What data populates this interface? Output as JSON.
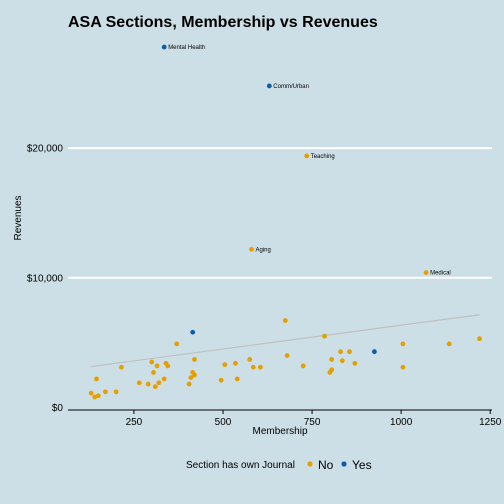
{
  "chart_data": {
    "type": "scatter",
    "title": "ASA Sections, Membership vs Revenues",
    "xlabel": "Membership",
    "ylabel": "Revenues",
    "xlim": [
      65,
      1255
    ],
    "ylim": [
      -200,
      28500
    ],
    "x_ticks": [
      250,
      500,
      750,
      1000,
      1250
    ],
    "x_tick_labels": [
      "250",
      "500",
      "750",
      "1000",
      "1250"
    ],
    "y_ticks": [
      0,
      10000,
      20000
    ],
    "y_tick_labels": [
      "$0",
      "$10,000",
      "$20,000"
    ],
    "grid": "horizontal",
    "legend_position": "bottom",
    "legend": {
      "title": "Section has own Journal",
      "entries": [
        {
          "label": "No",
          "color": "#e69f00"
        },
        {
          "label": "Yes",
          "color": "#0b5ea8"
        }
      ]
    },
    "trend_line": {
      "x": [
        130,
        1220
      ],
      "y": [
        3150,
        7150
      ],
      "color": "#c0c0c0"
    },
    "series": [
      {
        "name": "No",
        "color": "#e69f00",
        "points": [
          {
            "x": 130,
            "y": 1100
          },
          {
            "x": 140,
            "y": 800
          },
          {
            "x": 145,
            "y": 2200
          },
          {
            "x": 150,
            "y": 900
          },
          {
            "x": 170,
            "y": 1200
          },
          {
            "x": 200,
            "y": 1200
          },
          {
            "x": 215,
            "y": 3100
          },
          {
            "x": 265,
            "y": 1900
          },
          {
            "x": 290,
            "y": 1800
          },
          {
            "x": 300,
            "y": 3500
          },
          {
            "x": 305,
            "y": 2700
          },
          {
            "x": 310,
            "y": 1600
          },
          {
            "x": 315,
            "y": 3200
          },
          {
            "x": 320,
            "y": 1900
          },
          {
            "x": 335,
            "y": 2200
          },
          {
            "x": 340,
            "y": 3400
          },
          {
            "x": 345,
            "y": 3200
          },
          {
            "x": 370,
            "y": 4900
          },
          {
            "x": 405,
            "y": 1800
          },
          {
            "x": 410,
            "y": 2300
          },
          {
            "x": 415,
            "y": 2700
          },
          {
            "x": 420,
            "y": 2500
          },
          {
            "x": 420,
            "y": 3700
          },
          {
            "x": 495,
            "y": 2100
          },
          {
            "x": 505,
            "y": 3300
          },
          {
            "x": 535,
            "y": 3400
          },
          {
            "x": 540,
            "y": 2200
          },
          {
            "x": 575,
            "y": 3700
          },
          {
            "x": 585,
            "y": 3100
          },
          {
            "x": 605,
            "y": 3100
          },
          {
            "x": 675,
            "y": 6700
          },
          {
            "x": 680,
            "y": 4000
          },
          {
            "x": 725,
            "y": 3200
          },
          {
            "x": 785,
            "y": 5500
          },
          {
            "x": 800,
            "y": 2700
          },
          {
            "x": 805,
            "y": 2900
          },
          {
            "x": 805,
            "y": 3700
          },
          {
            "x": 830,
            "y": 4300
          },
          {
            "x": 835,
            "y": 3600
          },
          {
            "x": 855,
            "y": 4300
          },
          {
            "x": 870,
            "y": 3400
          },
          {
            "x": 1005,
            "y": 4900
          },
          {
            "x": 1005,
            "y": 3100
          },
          {
            "x": 1135,
            "y": 4900
          },
          {
            "x": 1220,
            "y": 5300
          }
        ]
      },
      {
        "name": "Yes",
        "color": "#0b5ea8",
        "points": [
          {
            "x": 415,
            "y": 5800
          },
          {
            "x": 925,
            "y": 4300
          }
        ]
      }
    ],
    "labeled_points": [
      {
        "label": "Mental Health",
        "x": 335,
        "y": 27800,
        "group": "Yes"
      },
      {
        "label": "Comm/Urban",
        "x": 630,
        "y": 24800,
        "group": "Yes"
      },
      {
        "label": "Teaching",
        "x": 735,
        "y": 19400,
        "group": "No"
      },
      {
        "label": "Aging",
        "x": 580,
        "y": 12200,
        "group": "No"
      },
      {
        "label": "Medical",
        "x": 1070,
        "y": 10400,
        "group": "No"
      }
    ]
  }
}
